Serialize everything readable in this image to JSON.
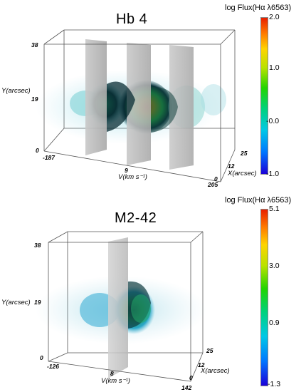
{
  "panels": [
    {
      "title": "Hb 4",
      "colorbar": {
        "title": "log Flux(Hα λ6563)",
        "ticks": [
          "2.0",
          "1.0",
          "-0.0",
          "-1.0"
        ]
      },
      "axes": {
        "y_ticks": [
          "38",
          "19",
          "0"
        ],
        "y_label": "Y(arcsec)",
        "v_ticks": [
          "-187",
          "9",
          "205"
        ],
        "v_label": "V(km s⁻¹)",
        "x_ticks": [
          "25",
          "12",
          "0"
        ],
        "x_label": "X(arcsec)"
      },
      "slices": 3
    },
    {
      "title": "M2-42",
      "colorbar": {
        "title": "log Flux(Hα λ6563)",
        "ticks": [
          "5.1",
          "3.0",
          "0.9",
          "-1.3"
        ]
      },
      "axes": {
        "y_ticks": [
          "38",
          "19",
          "0"
        ],
        "y_label": "Y(arcsec)",
        "v_ticks": [
          "-126",
          "8",
          "142"
        ],
        "v_label": "V(km s⁻¹)",
        "x_ticks": [
          "25",
          "12",
          "0"
        ],
        "x_label": "X(arcsec)"
      },
      "slices": 1
    }
  ],
  "colors": {
    "colormap": [
      "#1a00d8",
      "#0077ff",
      "#00c8e6",
      "#00d27a",
      "#22d400",
      "#b8e200",
      "#ffd400",
      "#ff7a00",
      "#e82000"
    ]
  }
}
